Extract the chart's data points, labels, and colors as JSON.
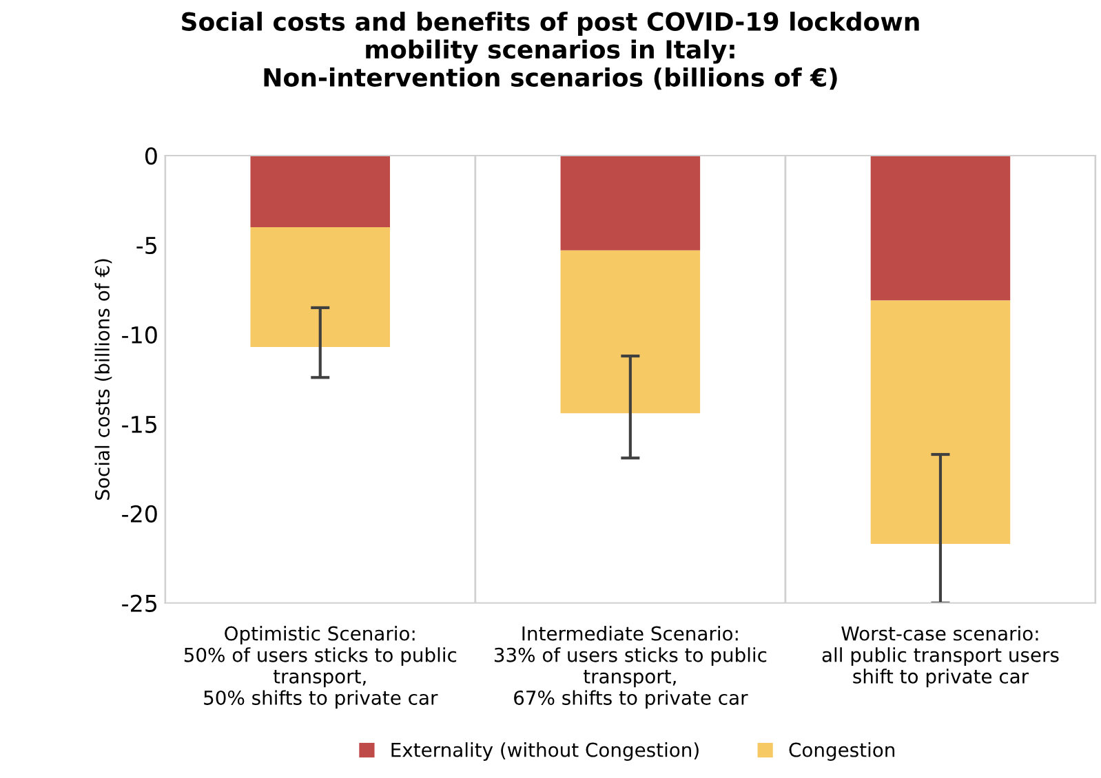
{
  "chart_data": {
    "type": "bar",
    "title": "Social costs and benefits of post COVID-19 lockdown\nmobility scenarios in Italy:\nNon-intervention scenarios (billions of €)",
    "ylabel": "Social costs (billions of €)",
    "categories": [
      "Optimistic Scenario:\n50% of users sticks to public\ntransport,\n50% shifts to private car",
      "Intermediate Scenario:\n33% of users sticks to public\ntransport,\n67% shifts to private car",
      "Worst-case scenario:\nall public transport users\nshift to private car"
    ],
    "stacked": true,
    "series": [
      {
        "name": "Externality (without Congestion)",
        "color": "#be4b48",
        "values": [
          -4.0,
          -5.3,
          -8.1
        ]
      },
      {
        "name": "Congestion",
        "color": "#f6c964",
        "values": [
          -6.7,
          -9.1,
          -13.6
        ],
        "errors": [
          [
            -12.4,
            -8.5
          ],
          [
            -16.9,
            -11.2
          ],
          [
            -25.0,
            -16.7
          ]
        ]
      }
    ],
    "ylim": [
      -25,
      0
    ],
    "yticks": [
      {
        "value": -25,
        "label": "-25"
      },
      {
        "value": -20,
        "label": "-20"
      },
      {
        "value": -15,
        "label": "-15"
      },
      {
        "value": -10,
        "label": "-10"
      },
      {
        "value": -5,
        "label": "-5"
      },
      0
    ],
    "legend": "bottom"
  }
}
